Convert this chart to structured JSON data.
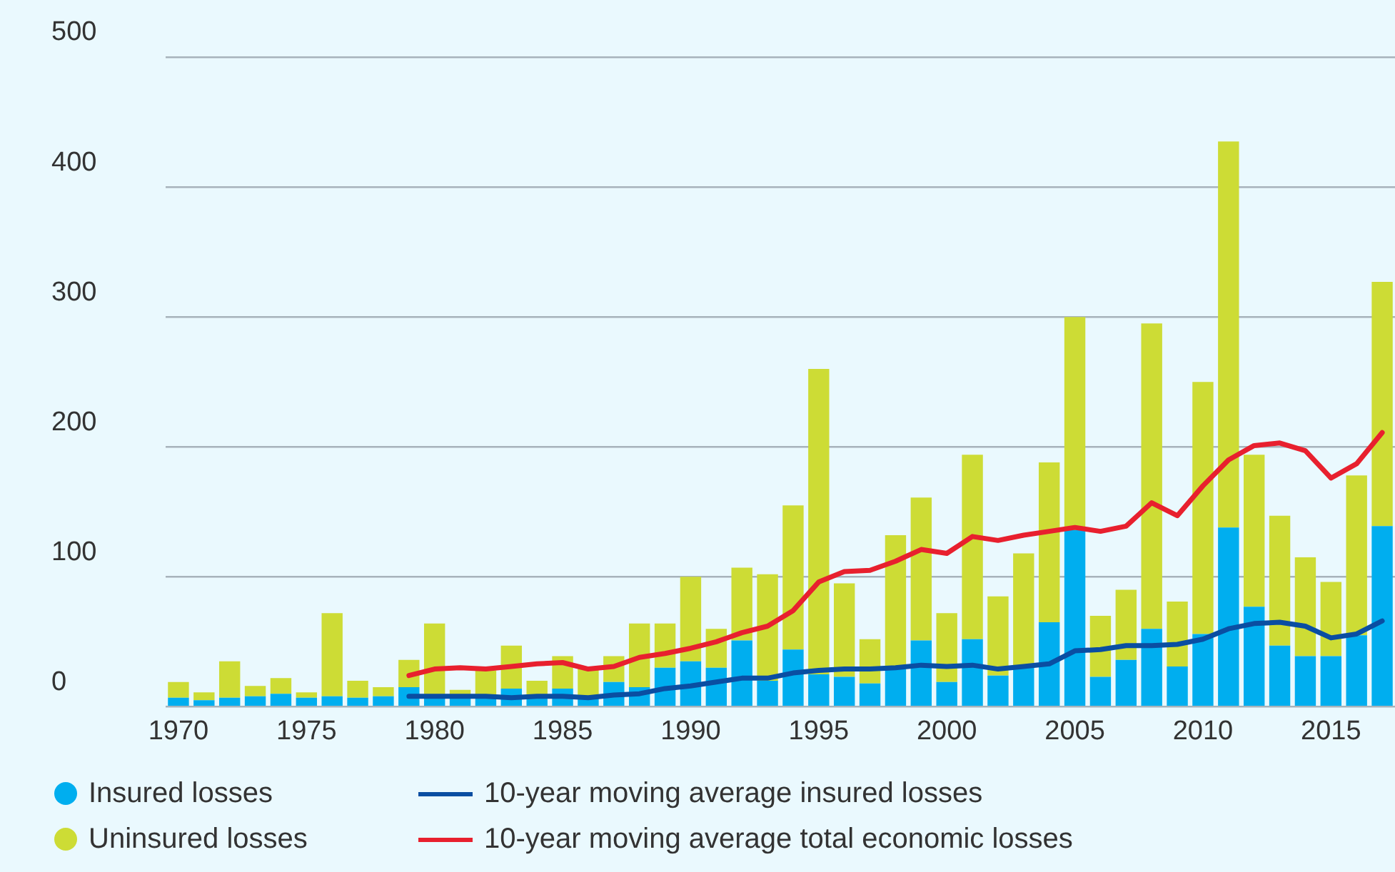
{
  "chart_data": {
    "type": "bar",
    "stacked": true,
    "categories": [
      "1970",
      null,
      null,
      null,
      null,
      "1975",
      null,
      null,
      null,
      null,
      "1980",
      null,
      null,
      null,
      null,
      "1985",
      null,
      null,
      null,
      null,
      "1990",
      null,
      null,
      null,
      null,
      "1995",
      null,
      null,
      null,
      null,
      "2000",
      null,
      null,
      null,
      null,
      "2005",
      null,
      null,
      null,
      null,
      "2010",
      null,
      null,
      null,
      null,
      "2015",
      null,
      null
    ],
    "series": [
      {
        "name": "Insured losses",
        "color": "#00aeef",
        "values": [
          7,
          5,
          7,
          8,
          10,
          7,
          8,
          7,
          8,
          15,
          9,
          8,
          9,
          14,
          8,
          14,
          7,
          19,
          15,
          30,
          35,
          30,
          51,
          20,
          44,
          25,
          23,
          18,
          29,
          51,
          19,
          52,
          24,
          31,
          65,
          136,
          23,
          36,
          60,
          31,
          56,
          138,
          77,
          47,
          39,
          39,
          55,
          139
        ]
      },
      {
        "name": "Uninsured losses",
        "color": "#cddc35",
        "values": [
          12,
          6,
          28,
          8,
          12,
          4,
          64,
          13,
          7,
          21,
          55,
          5,
          19,
          33,
          12,
          25,
          23,
          20,
          49,
          34,
          65,
          30,
          56,
          82,
          111,
          235,
          72,
          34,
          103,
          110,
          53,
          142,
          61,
          87,
          123,
          164,
          47,
          54,
          235,
          50,
          194,
          297,
          117,
          100,
          76,
          57,
          123,
          188
        ]
      },
      {
        "name": "10-year moving average insured losses",
        "type": "line",
        "color": "#0a4ea2",
        "values": [
          null,
          null,
          null,
          null,
          null,
          null,
          null,
          null,
          null,
          8,
          8,
          8,
          8,
          7,
          8,
          8,
          7,
          9,
          10,
          14,
          16,
          19,
          22,
          22,
          26,
          28,
          29,
          29,
          30,
          32,
          31,
          32,
          29,
          31,
          33,
          43,
          44,
          47,
          47,
          48,
          52,
          60,
          64,
          65,
          62,
          53,
          56,
          66
        ]
      },
      {
        "name": "10-year moving average total economic losses",
        "type": "line",
        "color": "#e8202e",
        "values": [
          null,
          null,
          null,
          null,
          null,
          null,
          null,
          null,
          null,
          24,
          29,
          30,
          29,
          31,
          33,
          34,
          29,
          31,
          38,
          41,
          45,
          50,
          57,
          62,
          74,
          96,
          104,
          105,
          112,
          121,
          118,
          131,
          128,
          132,
          135,
          138,
          135,
          139,
          157,
          147,
          170,
          190,
          201,
          203,
          197,
          176,
          187,
          211
        ]
      }
    ],
    "ylim": [
      0,
      500
    ],
    "yticks": [
      0,
      100,
      200,
      300,
      400,
      500
    ],
    "grid": "y",
    "legend": "bottom left",
    "marker": "none",
    "line_style": "solid"
  }
}
